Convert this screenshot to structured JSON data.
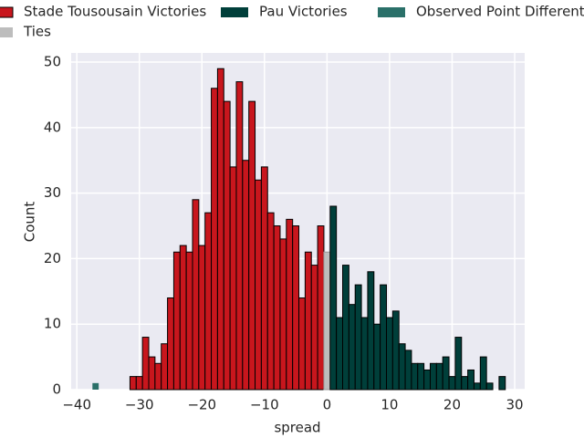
{
  "chart_data": {
    "type": "histogram",
    "xlabel": "spread",
    "ylabel": "Count",
    "xlim": [
      -40.9,
      31.6
    ],
    "ylim": [
      0,
      51.4
    ],
    "xticks": [
      {
        "value": -40,
        "label": "−40"
      },
      {
        "value": -30,
        "label": "−30"
      },
      {
        "value": -20,
        "label": "−20"
      },
      {
        "value": -10,
        "label": "−10"
      },
      0,
      10,
      20,
      30
    ],
    "yticks": [
      0,
      10,
      20,
      30,
      40,
      50
    ],
    "grid": true,
    "series": [
      {
        "name": "Stade Tousousain Victories",
        "color": "#c8161d",
        "bins": [
          -31.5,
          -30.5,
          -29.5,
          -28.5,
          -27.5,
          -26.5,
          -25.5,
          -24.5,
          -23.5,
          -22.5,
          -21.5,
          -20.5,
          -19.5,
          -18.5,
          -17.5,
          -16.5,
          -15.5,
          -14.5,
          -13.5,
          -12.5,
          -11.5,
          -10.5,
          -9.5,
          -8.5,
          -7.5,
          -6.5,
          -5.5,
          -4.5,
          -3.5,
          -2.5,
          -1.5,
          -0.5
        ],
        "values": [
          2,
          2,
          8,
          5,
          4,
          7,
          14,
          21,
          22,
          21,
          29,
          22,
          27,
          46,
          49,
          44,
          34,
          47,
          35,
          44,
          32,
          34,
          27,
          25,
          23,
          26,
          25,
          14,
          21,
          19,
          25
        ]
      },
      {
        "name": "Ties",
        "color": "#bdbdbd",
        "bins": [
          -0.5,
          0.5
        ],
        "values": [
          21
        ]
      },
      {
        "name": "Pau Victories",
        "color": "#003f3a",
        "bins": [
          0.5,
          1.5,
          2.5,
          3.5,
          4.5,
          5.5,
          6.5,
          7.5,
          8.5,
          9.5,
          10.5,
          11.5,
          12.5,
          13.5,
          14.5,
          15.5,
          16.5,
          17.5,
          18.5,
          19.5,
          20.5,
          21.5,
          22.5,
          23.5,
          24.5,
          25.5,
          26.5,
          27.5,
          28.5
        ],
        "values": [
          28,
          11,
          19,
          13,
          16,
          11,
          18,
          10,
          16,
          11,
          12,
          7,
          6,
          4,
          4,
          3,
          4,
          4,
          5,
          2,
          8,
          2,
          3,
          1,
          5,
          1,
          0,
          2
        ]
      },
      {
        "name": "Observed Point Differential",
        "color": "#2a7069",
        "bins": [
          -37.5,
          -36.5
        ],
        "values": [
          1
        ]
      }
    ]
  }
}
